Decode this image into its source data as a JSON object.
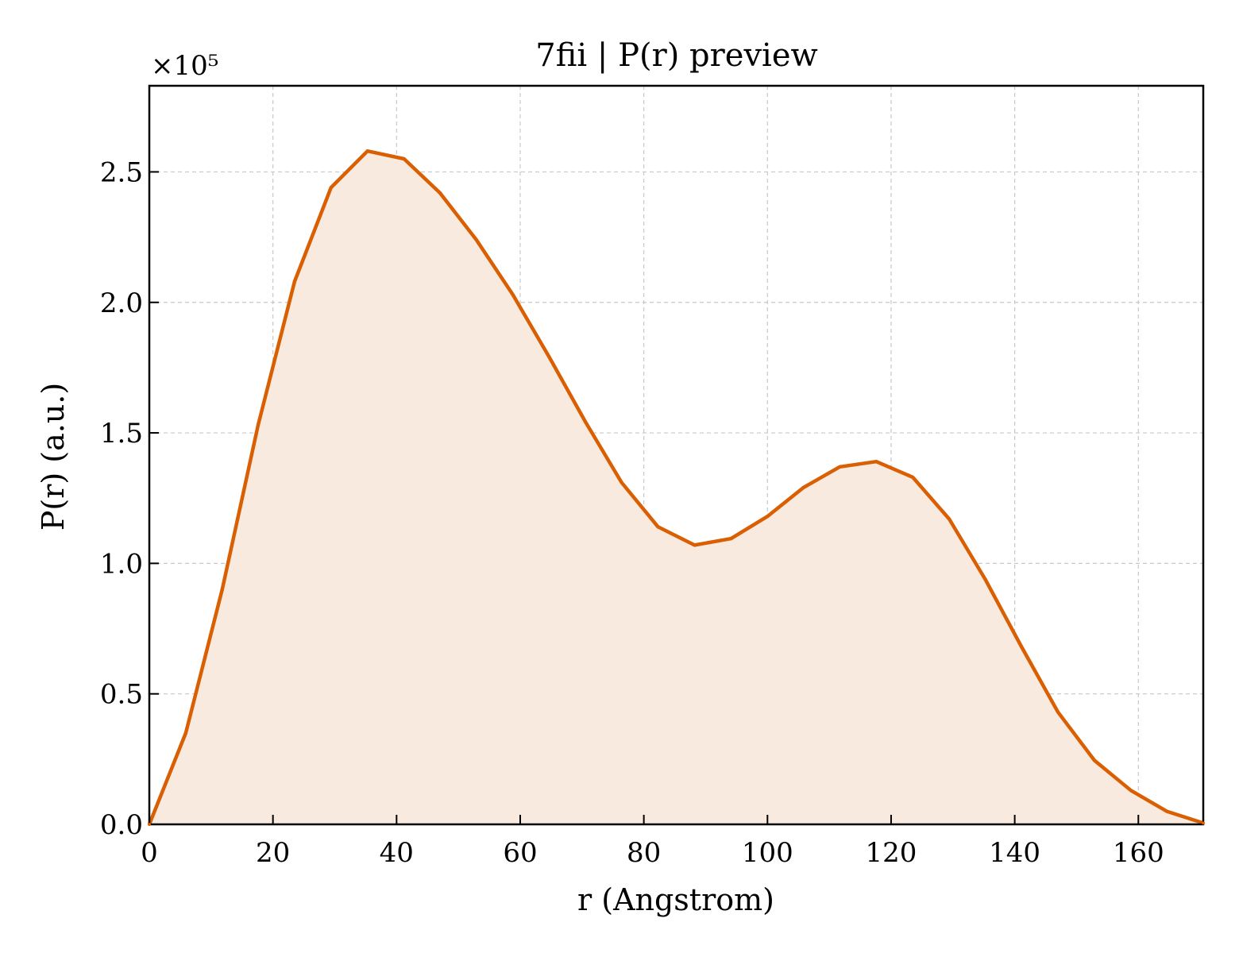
{
  "chart_data": {
    "type": "area",
    "title": "7fii | P(r) preview",
    "xlabel": "r (Angstrom)",
    "ylabel": "P(r) (a.u.)",
    "y_offset_label": "×10⁵",
    "xlim": [
      0,
      170.5
    ],
    "ylim": [
      0,
      2.83
    ],
    "xticks": [
      0,
      20,
      40,
      60,
      80,
      100,
      120,
      140,
      160
    ],
    "yticks": [
      0.0,
      0.5,
      1.0,
      1.5,
      2.0,
      2.5
    ],
    "xtick_labels": [
      "0",
      "20",
      "40",
      "60",
      "80",
      "100",
      "120",
      "140",
      "160"
    ],
    "ytick_labels": [
      "0.0",
      "0.5",
      "1.0",
      "1.5",
      "2.0",
      "2.5"
    ],
    "grid": true,
    "colors": {
      "line": "#d95f02",
      "fill": "#f9eadf"
    },
    "series": [
      {
        "x": [
          0,
          5.9,
          11.8,
          17.6,
          23.5,
          29.4,
          35.3,
          41.2,
          47.0,
          52.9,
          58.8,
          64.7,
          70.6,
          76.4,
          82.3,
          88.2,
          94.1,
          100.0,
          105.8,
          111.7,
          117.6,
          123.5,
          129.4,
          135.2,
          141.1,
          147.0,
          152.9,
          158.8,
          164.6,
          170.5
        ],
        "values": [
          0.0,
          0.35,
          0.9,
          1.53,
          2.08,
          2.44,
          2.58,
          2.55,
          2.42,
          2.24,
          2.03,
          1.79,
          1.54,
          1.31,
          1.14,
          1.07,
          1.095,
          1.18,
          1.29,
          1.37,
          1.39,
          1.33,
          1.17,
          0.94,
          0.68,
          0.43,
          0.245,
          0.13,
          0.05,
          0.005
        ]
      }
    ]
  }
}
